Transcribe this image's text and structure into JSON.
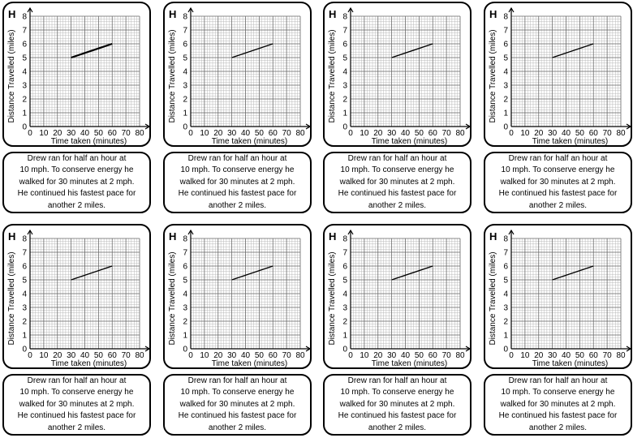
{
  "worksheet": {
    "card_count": 8,
    "card": {
      "tier_label": "H",
      "graph": {
        "xlabel": "Time taken (minutes)",
        "ylabel": "Distance Travelled (miles)",
        "x_ticks": [
          "0",
          "10",
          "20",
          "30",
          "40",
          "50",
          "60",
          "70",
          "80"
        ],
        "y_ticks": [
          "0",
          "1",
          "2",
          "3",
          "4",
          "5",
          "6",
          "7",
          "8"
        ]
      },
      "description_lines": [
        "Drew ran for half an hour at",
        "10 mph. To conserve energy he",
        "walked for 30 minutes at 2 mph.",
        "He continued his fastest pace for",
        "another 2 miles."
      ]
    }
  },
  "chart_data": {
    "type": "line",
    "title": "",
    "xlabel": "Time taken (minutes)",
    "ylabel": "Distance Travelled (miles)",
    "xlim": [
      0,
      80
    ],
    "ylim": [
      0,
      8
    ],
    "grid": true,
    "series": [
      {
        "name": "segment",
        "x": [
          30,
          60
        ],
        "y": [
          5,
          6
        ]
      }
    ]
  }
}
